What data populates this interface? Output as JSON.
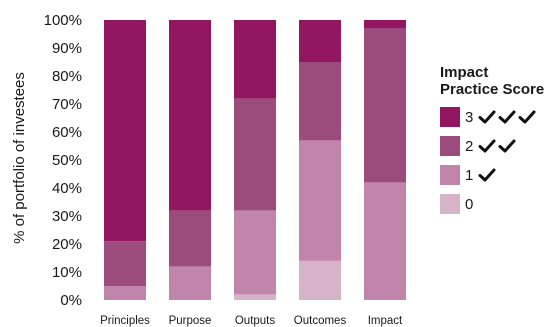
{
  "chart_data": {
    "type": "bar",
    "stacked": true,
    "categories": [
      "Principles",
      "Purpose",
      "Outputs",
      "Outcomes",
      "Impact"
    ],
    "ylabel": "% of portfolio of investees",
    "ylim": [
      0,
      100
    ],
    "yticks": [
      "0%",
      "10%",
      "20%",
      "30%",
      "40%",
      "50%",
      "60%",
      "70%",
      "80%",
      "90%",
      "100%"
    ],
    "grid": false,
    "legend_position": "right",
    "series": [
      {
        "name": "0",
        "color": "#d6b3c9",
        "values": [
          0,
          0,
          2,
          14,
          0
        ]
      },
      {
        "name": "1",
        "color": "#c185ac",
        "values": [
          5,
          12,
          30,
          43,
          42
        ]
      },
      {
        "name": "2",
        "color": "#9c4b7d",
        "values": [
          16,
          20,
          40,
          28,
          55
        ]
      },
      {
        "name": "3",
        "color": "#921760",
        "values": [
          79,
          68,
          28,
          15,
          3
        ]
      }
    ]
  },
  "legend": {
    "title": "Impact Practice Score",
    "items": [
      {
        "label": "3",
        "checks": 3,
        "color": "#921760"
      },
      {
        "label": "2",
        "checks": 2,
        "color": "#9c4b7d"
      },
      {
        "label": "1",
        "checks": 1,
        "color": "#c185ac"
      },
      {
        "label": "0",
        "checks": 0,
        "color": "#d6b3c9"
      }
    ],
    "check_icon": "checkmark-icon"
  }
}
